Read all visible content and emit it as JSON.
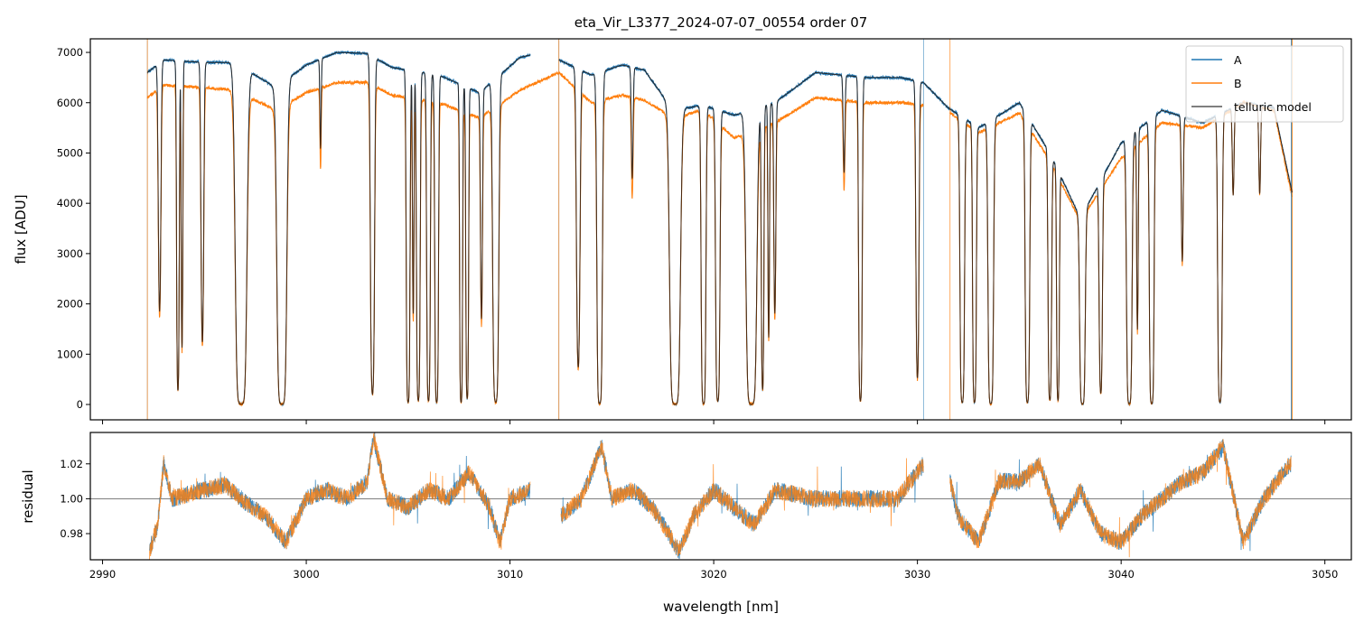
{
  "chart_data": [
    {
      "type": "line",
      "title": "eta_Vir_L3377_2024-07-07_00554  order 07",
      "xlabel": "",
      "ylabel": "flux [ADU]",
      "xlim": [
        2989.4,
        3051.3
      ],
      "ylim": [
        -305,
        7270
      ],
      "xticks": [
        2990,
        3000,
        3010,
        3020,
        3030,
        3040,
        3050
      ],
      "yticks": [
        0,
        1000,
        2000,
        3000,
        4000,
        5000,
        6000,
        7000
      ],
      "legend": {
        "placement": "top-right",
        "entries": [
          "A",
          "B",
          "telluric model"
        ]
      },
      "colors": {
        "A": "#1f77b4",
        "B": "#ff7f0e",
        "telluric model": "#222222"
      },
      "segments": [
        {
          "A": [
            2992.2,
            3011.0
          ],
          "B": [
            2992.2,
            3012.4
          ]
        },
        {
          "A": [
            3012.4,
            3030.3
          ],
          "B": [
            3012.4,
            3030.3
          ]
        },
        {
          "A": [
            3030.3,
            3048.4
          ],
          "B": [
            3031.6,
            3048.4
          ]
        }
      ],
      "continuum_A": [
        [
          2992.2,
          6600
        ],
        [
          2993,
          6850
        ],
        [
          2995,
          6800
        ],
        [
          2996.5,
          6800
        ],
        [
          2998.5,
          6300
        ],
        [
          3000,
          6750
        ],
        [
          3001.5,
          7000
        ],
        [
          3003,
          6980
        ],
        [
          3004.2,
          6700
        ],
        [
          3006.5,
          6550
        ],
        [
          3008.5,
          6200
        ],
        [
          3010.5,
          6900
        ],
        [
          3011,
          6950
        ],
        [
          3012.4,
          6850
        ],
        [
          3014,
          6550
        ],
        [
          3015.5,
          6750
        ],
        [
          3016.6,
          6650
        ],
        [
          3018,
          5850
        ],
        [
          3019.5,
          5950
        ],
        [
          3021,
          5750
        ],
        [
          3023,
          6000
        ],
        [
          3025,
          6600
        ],
        [
          3027.5,
          6500
        ],
        [
          3029.2,
          6500
        ],
        [
          3030.3,
          6400
        ],
        [
          3031.5,
          5900
        ],
        [
          3033,
          5500
        ],
        [
          3035,
          6000
        ],
        [
          3036.5,
          5000
        ],
        [
          3038,
          3700
        ],
        [
          3040,
          5200
        ],
        [
          3042,
          5850
        ],
        [
          3044,
          5600
        ],
        [
          3046,
          6000
        ],
        [
          3047.5,
          5900
        ],
        [
          3048.4,
          4200
        ]
      ],
      "continuum_B": [
        [
          2992.2,
          6100
        ],
        [
          2993,
          6350
        ],
        [
          2995,
          6300
        ],
        [
          2996.5,
          6250
        ],
        [
          2998.5,
          5850
        ],
        [
          3000,
          6200
        ],
        [
          3001.5,
          6400
        ],
        [
          3003,
          6400
        ],
        [
          3004.2,
          6150
        ],
        [
          3006.5,
          6000
        ],
        [
          3008.5,
          5700
        ],
        [
          3010.5,
          6250
        ],
        [
          3012.4,
          6600
        ],
        [
          3014,
          6000
        ],
        [
          3015.5,
          6150
        ],
        [
          3016.6,
          6050
        ],
        [
          3018,
          5700
        ],
        [
          3019.5,
          5850
        ],
        [
          3021,
          5300
        ],
        [
          3023,
          5600
        ],
        [
          3025,
          6100
        ],
        [
          3027.5,
          6000
        ],
        [
          3029.2,
          6000
        ],
        [
          3030.3,
          5950
        ],
        [
          3031.6,
          5800
        ],
        [
          3033,
          5400
        ],
        [
          3035,
          5800
        ],
        [
          3036.5,
          4850
        ],
        [
          3038,
          3650
        ],
        [
          3040,
          4900
        ],
        [
          3042,
          5600
        ],
        [
          3044,
          5500
        ],
        [
          3046,
          6000
        ],
        [
          3047.5,
          5850
        ],
        [
          3048.4,
          4100
        ]
      ],
      "telluric_lines_nm_tau_width": [
        [
          2992.8,
          1.3,
          0.05
        ],
        [
          2993.7,
          3.2,
          0.04
        ],
        [
          2993.9,
          1.8,
          0.03
        ],
        [
          2994.9,
          1.7,
          0.05
        ],
        [
          2996.8,
          7,
          0.14
        ],
        [
          2998.8,
          7,
          0.12
        ],
        [
          3000.7,
          0.3,
          0.03
        ],
        [
          3003.25,
          3.5,
          0.06
        ],
        [
          3005.0,
          5,
          0.05
        ],
        [
          3005.25,
          1.3,
          0.03
        ],
        [
          3005.5,
          4.5,
          0.05
        ],
        [
          3006.0,
          4.5,
          0.05
        ],
        [
          3006.4,
          5,
          0.05
        ],
        [
          3007.6,
          5,
          0.04
        ],
        [
          3007.9,
          4,
          0.04
        ],
        [
          3008.6,
          1.3,
          0.04
        ],
        [
          3009.3,
          5,
          0.08
        ],
        [
          3013.35,
          2.2,
          0.06
        ],
        [
          3014.4,
          6,
          0.07
        ],
        [
          3016.0,
          0.4,
          0.04
        ],
        [
          3018.1,
          7,
          0.13
        ],
        [
          3019.5,
          6,
          0.06
        ],
        [
          3020.2,
          4.5,
          0.06
        ],
        [
          3021.85,
          7,
          0.13
        ],
        [
          3022.4,
          3,
          0.04
        ],
        [
          3022.7,
          1.5,
          0.03
        ],
        [
          3023.0,
          1.2,
          0.04
        ],
        [
          3026.4,
          0.35,
          0.04
        ],
        [
          3027.2,
          4.5,
          0.05
        ],
        [
          3030.0,
          2.5,
          0.05
        ],
        [
          3032.2,
          5,
          0.06
        ],
        [
          3032.8,
          5,
          0.05
        ],
        [
          3033.6,
          6,
          0.07
        ],
        [
          3035.4,
          5,
          0.06
        ],
        [
          3036.5,
          4,
          0.05
        ],
        [
          3036.9,
          4,
          0.04
        ],
        [
          3038.1,
          6,
          0.07
        ],
        [
          3039.0,
          3,
          0.05
        ],
        [
          3040.4,
          6,
          0.07
        ],
        [
          3040.8,
          1.3,
          0.03
        ],
        [
          3041.5,
          6,
          0.06
        ],
        [
          3043.0,
          0.7,
          0.04
        ],
        [
          3044.85,
          5,
          0.06
        ],
        [
          3045.5,
          0.35,
          0.04
        ],
        [
          3046.8,
          0.35,
          0.04
        ]
      ]
    },
    {
      "type": "line",
      "title": "",
      "xlabel": "wavelength [nm]",
      "ylabel": "residual",
      "xlim": [
        2989.4,
        3051.3
      ],
      "ylim": [
        0.965,
        1.038
      ],
      "xticks": [
        2990,
        3000,
        3010,
        3020,
        3030,
        3040,
        3050
      ],
      "xticklabels": [
        "2990",
        "3000",
        "3010",
        "3020",
        "3030",
        "3040",
        "3050"
      ],
      "yticks": [
        0.98,
        1.0,
        1.02
      ],
      "yticklabels": [
        "0.98",
        "1.00",
        "1.02"
      ],
      "reference_line": 1.0,
      "noise_amplitude": 0.005,
      "residual_trend": [
        [
          2992.3,
          0.97
        ],
        [
          2992.7,
          0.985
        ],
        [
          2993.0,
          1.02
        ],
        [
          2993.4,
          1.0
        ],
        [
          2995,
          1.005
        ],
        [
          2996,
          1.008
        ],
        [
          2997,
          0.998
        ],
        [
          2998,
          0.99
        ],
        [
          2999,
          0.975
        ],
        [
          3000,
          1.0
        ],
        [
          3001,
          1.005
        ],
        [
          3002,
          1.0
        ],
        [
          3003,
          1.01
        ],
        [
          3003.3,
          1.035
        ],
        [
          3004,
          1.0
        ],
        [
          3005,
          0.995
        ],
        [
          3006,
          1.005
        ],
        [
          3007,
          1.0
        ],
        [
          3008,
          1.015
        ],
        [
          3009,
          0.995
        ],
        [
          3009.5,
          0.975
        ],
        [
          3010,
          1.0
        ],
        [
          3011,
          1.005
        ],
        [
          3012.5,
          0.99
        ],
        [
          3013.5,
          1.0
        ],
        [
          3014.5,
          1.03
        ],
        [
          3015,
          1.0
        ],
        [
          3016,
          1.005
        ],
        [
          3017,
          0.995
        ],
        [
          3018.3,
          0.97
        ],
        [
          3019,
          0.99
        ],
        [
          3020,
          1.005
        ],
        [
          3021,
          0.995
        ],
        [
          3022,
          0.985
        ],
        [
          3023,
          1.005
        ],
        [
          3025,
          1.0
        ],
        [
          3027,
          1.0
        ],
        [
          3029,
          1.0
        ],
        [
          3030.3,
          1.02
        ],
        [
          3031.6,
          1.01
        ],
        [
          3032,
          0.99
        ],
        [
          3033,
          0.975
        ],
        [
          3034,
          1.01
        ],
        [
          3035,
          1.01
        ],
        [
          3036,
          1.02
        ],
        [
          3037,
          0.985
        ],
        [
          3038,
          1.005
        ],
        [
          3039,
          0.98
        ],
        [
          3040,
          0.975
        ],
        [
          3041,
          0.99
        ],
        [
          3042,
          1.0
        ],
        [
          3043,
          1.01
        ],
        [
          3044,
          1.015
        ],
        [
          3045,
          1.03
        ],
        [
          3046,
          0.975
        ],
        [
          3047,
          1.0
        ],
        [
          3048.3,
          1.02
        ]
      ]
    }
  ]
}
